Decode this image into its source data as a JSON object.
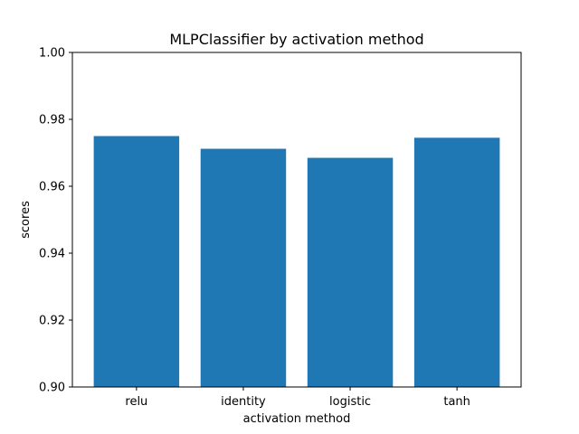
{
  "chart_data": {
    "type": "bar",
    "title": "MLPClassifier by activation method",
    "xlabel": "activation method",
    "ylabel": "scores",
    "categories": [
      "relu",
      "identity",
      "logistic",
      "tanh"
    ],
    "values": [
      0.975,
      0.9712,
      0.9685,
      0.9745
    ],
    "ylim": [
      0.9,
      1.0
    ],
    "yticks": [
      0.9,
      0.92,
      0.94,
      0.96,
      0.98,
      1.0
    ],
    "ytick_labels": [
      "0.90",
      "0.92",
      "0.94",
      "0.96",
      "0.98",
      "1.00"
    ],
    "grid": false,
    "bar_color": "#1f77b4"
  }
}
